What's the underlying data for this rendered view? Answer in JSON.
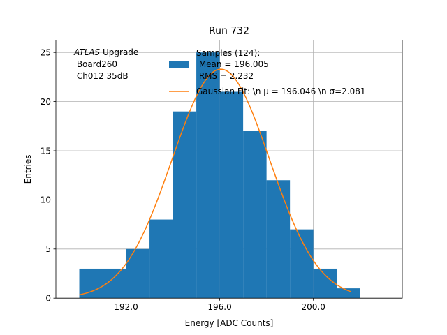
{
  "chart_data": {
    "type": "bar",
    "title": "Run 732",
    "xlabel": "Energy [ADC Counts]",
    "ylabel": "Entries",
    "xlim": [
      189.0,
      203.8
    ],
    "ylim": [
      0,
      26.25
    ],
    "grid": true,
    "x_ticks": [
      192.0,
      196.0,
      200.0
    ],
    "x_tick_labels": [
      "192.0",
      "196.0",
      "200.0"
    ],
    "y_ticks": [
      0,
      5,
      10,
      15,
      20,
      25
    ],
    "y_tick_labels": [
      "0",
      "5",
      "10",
      "15",
      "20",
      "25"
    ],
    "bin_edges": [
      190.0,
      191.0,
      192.0,
      193.0,
      194.0,
      195.0,
      196.0,
      197.0,
      198.0,
      199.0,
      200.0,
      201.0,
      202.0
    ],
    "values": [
      3,
      3,
      5,
      8,
      19,
      25,
      21,
      17,
      12,
      7,
      3,
      1
    ],
    "bar_color": "#1f77b4",
    "fit": {
      "type": "gaussian",
      "mu": 196.046,
      "sigma": 2.081,
      "amplitude": 23.3,
      "x_range": [
        190.0,
        201.6
      ],
      "color": "#ff7f0e"
    },
    "legend": {
      "position": "upper-center",
      "entries": [
        {
          "marker": "patch",
          "lines": [
            "Samples (124):",
            " Mean = 196.005",
            " RMS = 2.232"
          ]
        },
        {
          "marker": "line",
          "text": "Gaussian Fit: \\n μ = 196.046 \\n σ=2.081"
        }
      ]
    },
    "annotation": {
      "lines": [
        "ATLAS Upgrade",
        " Board260",
        " Ch012 35dB"
      ],
      "position": "top-left"
    }
  }
}
